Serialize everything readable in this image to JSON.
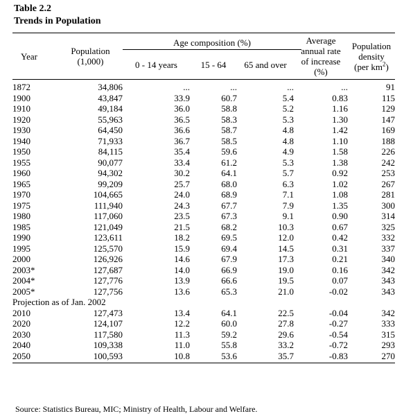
{
  "caption": {
    "number": "Table 2.2",
    "title": "Trends in Population"
  },
  "headers": {
    "year": "Year",
    "population_line1": "Population",
    "population_line2": "(1,000)",
    "age_group": "Age composition (%)",
    "age_0_14": "0 - 14 years",
    "age_15_64": "15 - 64",
    "age_65": "65 and over",
    "rate_line1": "Average",
    "rate_line2": "annual rate",
    "rate_line3": "of increase",
    "rate_line4": "(%)",
    "density_line1": "Population",
    "density_line2": "density",
    "density_line3": "(per km",
    "density_sup": "2",
    "density_close": ")"
  },
  "rows": [
    {
      "year": "1872",
      "population": "34,806",
      "age_0_14": "...",
      "age_15_64": "...",
      "age_65": "...",
      "rate": "...",
      "density": "91"
    },
    {
      "year": "1900",
      "population": "43,847",
      "age_0_14": "33.9",
      "age_15_64": "60.7",
      "age_65": "5.4",
      "rate": "0.83",
      "density": "115"
    },
    {
      "year": "1910",
      "population": "49,184",
      "age_0_14": "36.0",
      "age_15_64": "58.8",
      "age_65": "5.2",
      "rate": "1.16",
      "density": "129"
    },
    {
      "year": "1920",
      "population": "55,963",
      "age_0_14": "36.5",
      "age_15_64": "58.3",
      "age_65": "5.3",
      "rate": "1.30",
      "density": "147"
    },
    {
      "year": "1930",
      "population": "64,450",
      "age_0_14": "36.6",
      "age_15_64": "58.7",
      "age_65": "4.8",
      "rate": "1.42",
      "density": "169"
    },
    {
      "year": "1940",
      "population": "71,933",
      "age_0_14": "36.7",
      "age_15_64": "58.5",
      "age_65": "4.8",
      "rate": "1.10",
      "density": "188"
    },
    {
      "year": "1950",
      "population": "84,115",
      "age_0_14": "35.4",
      "age_15_64": "59.6",
      "age_65": "4.9",
      "rate": "1.58",
      "density": "226"
    },
    {
      "year": "1955",
      "population": "90,077",
      "age_0_14": "33.4",
      "age_15_64": "61.2",
      "age_65": "5.3",
      "rate": "1.38",
      "density": "242"
    },
    {
      "year": "1960",
      "population": "94,302",
      "age_0_14": "30.2",
      "age_15_64": "64.1",
      "age_65": "5.7",
      "rate": "0.92",
      "density": "253"
    },
    {
      "year": "1965",
      "population": "99,209",
      "age_0_14": "25.7",
      "age_15_64": "68.0",
      "age_65": "6.3",
      "rate": "1.02",
      "density": "267"
    },
    {
      "year": "1970",
      "population": "104,665",
      "age_0_14": "24.0",
      "age_15_64": "68.9",
      "age_65": "7.1",
      "rate": "1.08",
      "density": "281"
    },
    {
      "year": "1975",
      "population": "111,940",
      "age_0_14": "24.3",
      "age_15_64": "67.7",
      "age_65": "7.9",
      "rate": "1.35",
      "density": "300"
    },
    {
      "year": "1980",
      "population": "117,060",
      "age_0_14": "23.5",
      "age_15_64": "67.3",
      "age_65": "9.1",
      "rate": "0.90",
      "density": "314"
    },
    {
      "year": "1985",
      "population": "121,049",
      "age_0_14": "21.5",
      "age_15_64": "68.2",
      "age_65": "10.3",
      "rate": "0.67",
      "density": "325"
    },
    {
      "year": "1990",
      "population": "123,611",
      "age_0_14": "18.2",
      "age_15_64": "69.5",
      "age_65": "12.0",
      "rate": "0.42",
      "density": "332"
    },
    {
      "year": "1995",
      "population": "125,570",
      "age_0_14": "15.9",
      "age_15_64": "69.4",
      "age_65": "14.5",
      "rate": "0.31",
      "density": "337"
    },
    {
      "year": "2000",
      "population": "126,926",
      "age_0_14": "14.6",
      "age_15_64": "67.9",
      "age_65": "17.3",
      "rate": "0.21",
      "density": "340"
    },
    {
      "year": "2003*",
      "population": "127,687",
      "age_0_14": "14.0",
      "age_15_64": "66.9",
      "age_65": "19.0",
      "rate": "0.16",
      "density": "342"
    },
    {
      "year": "2004*",
      "population": "127,776",
      "age_0_14": "13.9",
      "age_15_64": "66.6",
      "age_65": "19.5",
      "rate": "0.07",
      "density": "343"
    },
    {
      "year": "2005*",
      "population": "127,756",
      "age_0_14": "13.6",
      "age_15_64": "65.3",
      "age_65": "21.0",
      "rate": "-0.02",
      "density": "343"
    }
  ],
  "projection_label": "Projection as of Jan. 2002",
  "projection_rows": [
    {
      "year": "2010",
      "population": "127,473",
      "age_0_14": "13.4",
      "age_15_64": "64.1",
      "age_65": "22.5",
      "rate": "-0.04",
      "density": "342"
    },
    {
      "year": "2020",
      "population": "124,107",
      "age_0_14": "12.2",
      "age_15_64": "60.0",
      "age_65": "27.8",
      "rate": "-0.27",
      "density": "333"
    },
    {
      "year": "2030",
      "population": "117,580",
      "age_0_14": "11.3",
      "age_15_64": "59.2",
      "age_65": "29.6",
      "rate": "-0.54",
      "density": "315"
    },
    {
      "year": "2040",
      "population": "109,338",
      "age_0_14": "11.0",
      "age_15_64": "55.8",
      "age_65": "33.2",
      "rate": "-0.72",
      "density": "293"
    },
    {
      "year": "2050",
      "population": "100,593",
      "age_0_14": "10.8",
      "age_15_64": "53.6",
      "age_65": "35.7",
      "rate": "-0.83",
      "density": "270"
    }
  ],
  "source": "Source:  Statistics Bureau, MIC;  Ministry of Health, Labour and Welfare."
}
